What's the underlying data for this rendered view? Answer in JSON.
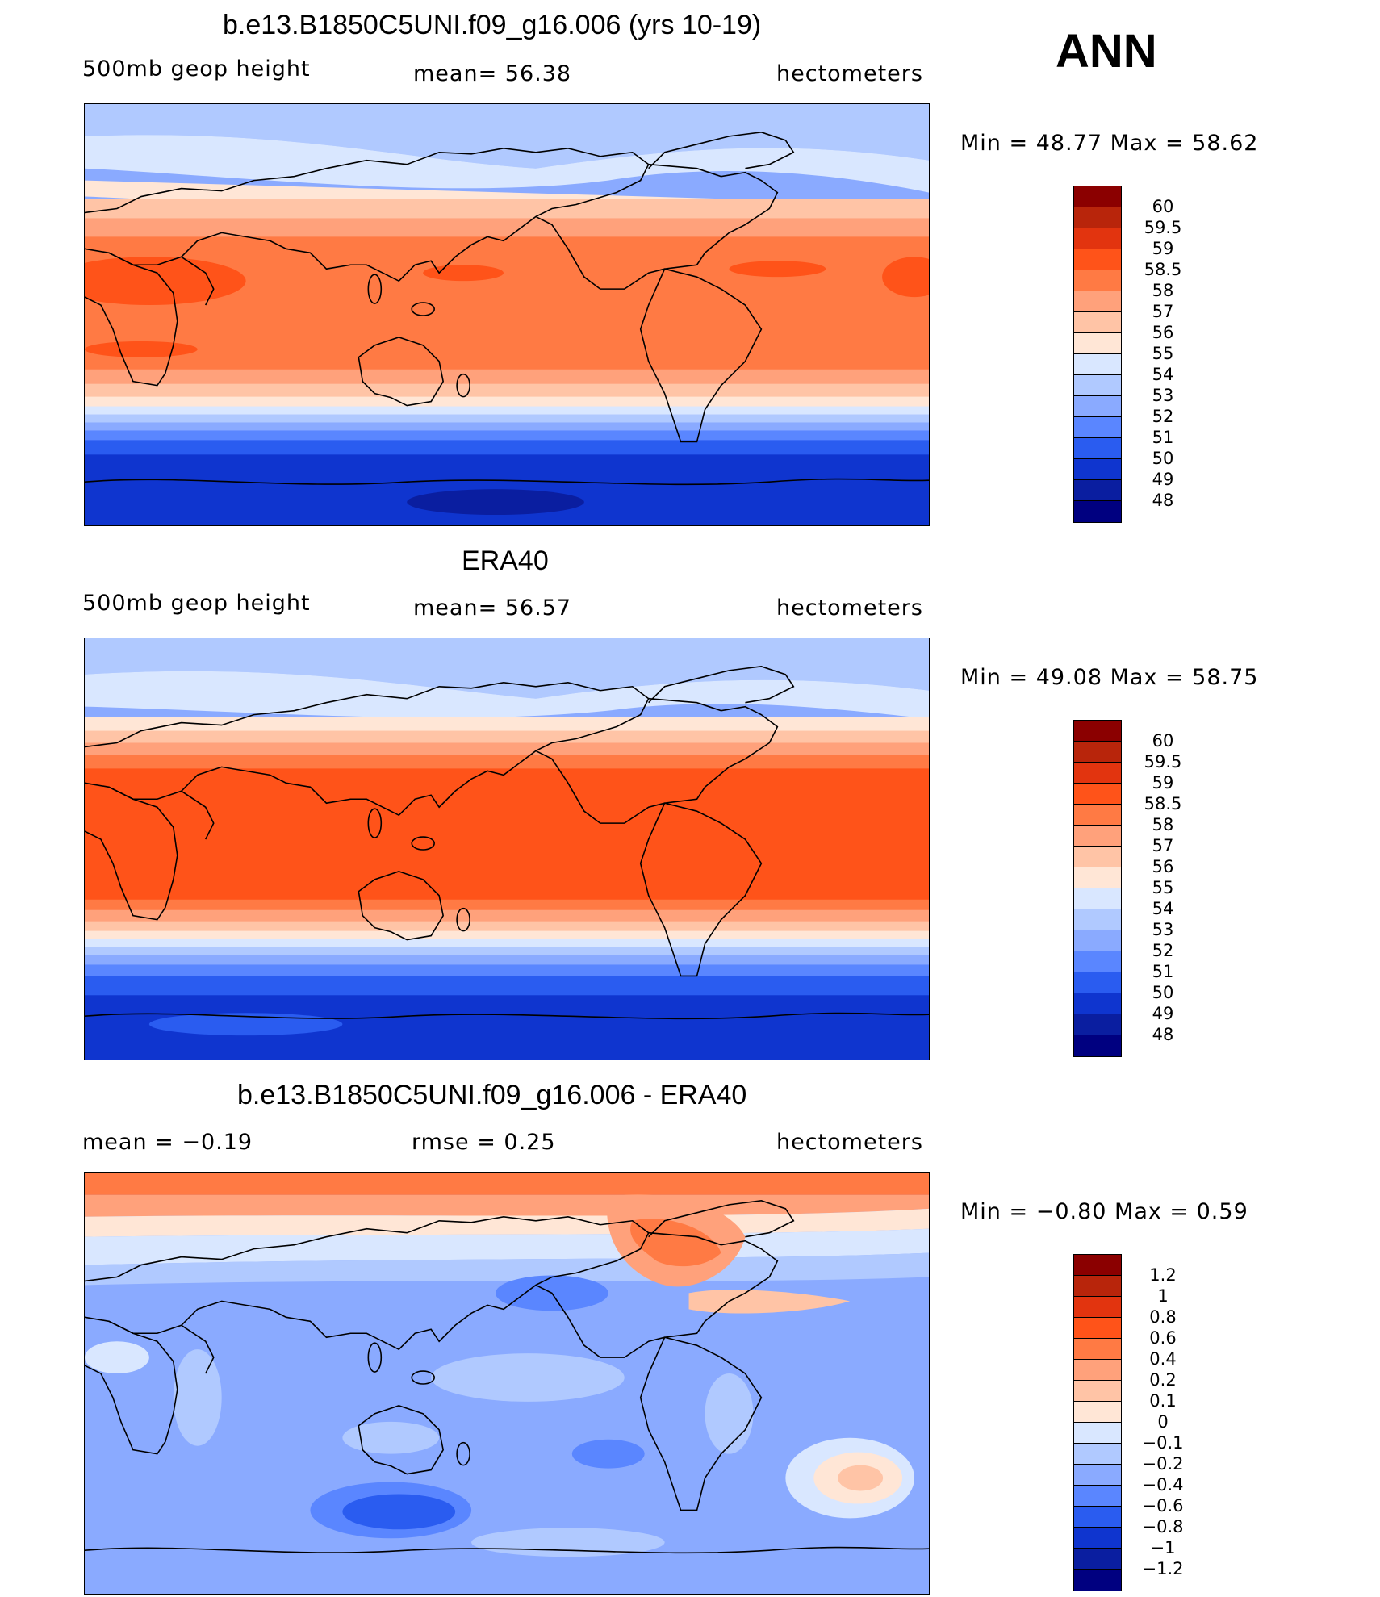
{
  "season": "ANN",
  "units": "hectometers",
  "color_legends": {
    "absolute": {
      "levels": [
        "60",
        "59.5",
        "59",
        "58.5",
        "58",
        "57",
        "56",
        "55",
        "54",
        "53",
        "52",
        "51",
        "50",
        "49",
        "48"
      ],
      "colors": [
        "#8b0000",
        "#b8250b",
        "#e2340f",
        "#ff5319",
        "#ff7a44",
        "#ffa17b",
        "#ffc4a6",
        "#ffe6d6",
        "#d9e7ff",
        "#b0c9ff",
        "#8aaaff",
        "#5a86ff",
        "#2a5cf0",
        "#0f35cf",
        "#0a1ea0",
        "#000080"
      ]
    },
    "difference": {
      "levels": [
        "1.2",
        "1",
        "0.8",
        "0.6",
        "0.4",
        "0.2",
        "0.1",
        "0",
        "−0.1",
        "−0.2",
        "−0.4",
        "−0.6",
        "−0.8",
        "−1",
        "−1.2"
      ],
      "colors": [
        "#8b0000",
        "#b8250b",
        "#e2340f",
        "#ff5319",
        "#ff7a44",
        "#ffa17b",
        "#ffc4a6",
        "#ffe6d6",
        "#d9e7ff",
        "#b0c9ff",
        "#8aaaff",
        "#5a86ff",
        "#2a5cf0",
        "#0f35cf",
        "#0a1ea0",
        "#000080"
      ]
    }
  },
  "panels": [
    {
      "title": "b.e13.B1850C5UNI.f09_g16.006 (yrs 10-19)",
      "variable": "500mb geop height",
      "stat_left": "mean=  56.38",
      "units": "hectometers",
      "range": "Min =   48.77  Max =   58.62"
    },
    {
      "title": "ERA40",
      "variable": "500mb geop height",
      "stat_left": "mean=  56.57",
      "units": "hectometers",
      "range": "Min =   49.08  Max =   58.75"
    },
    {
      "title": "b.e13.B1850C5UNI.f09_g16.006 - ERA40",
      "stat_left": "mean =   −0.19",
      "stat_mid": "rmse =    0.25",
      "units": "hectometers",
      "range": "Min =   −0.80  Max =     0.59"
    }
  ]
}
